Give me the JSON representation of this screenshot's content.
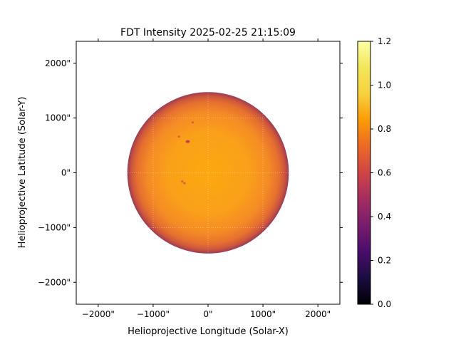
{
  "chart_data": {
    "type": "heatmap",
    "title": "FDT Intensity 2025-02-25 21:15:09",
    "xlabel": "Helioprojective Longitude (Solar-X)",
    "ylabel": "Helioprojective Latitude (Solar-Y)",
    "xlim": [
      -2400,
      2400
    ],
    "ylim": [
      -2400,
      2400
    ],
    "x_ticks": [
      -2000,
      -1000,
      0,
      1000,
      2000
    ],
    "y_ticks": [
      -2000,
      -1000,
      0,
      1000,
      2000
    ],
    "x_tick_labels": [
      "−2000\"",
      "−1000\"",
      "0\"",
      "1000\"",
      "2000\""
    ],
    "y_tick_labels": [
      "−2000\"",
      "−1000\"",
      "0\"",
      "1000\"",
      "2000\""
    ],
    "grid": true,
    "colormap": "inferno",
    "colorbar": {
      "min": 0.0,
      "max": 1.2,
      "ticks": [
        0.0,
        0.2,
        0.4,
        0.6,
        0.8,
        1.0,
        1.2
      ],
      "tick_labels": [
        "0.0",
        "0.2",
        "0.4",
        "0.6",
        "0.8",
        "1.0",
        "1.2"
      ]
    },
    "solar_disk": {
      "center_arcsec": [
        0,
        0
      ],
      "radius_arcsec": 1470,
      "center_intensity": 1.0,
      "limb_intensity": 0.55
    },
    "features": [
      {
        "name": "sunspot",
        "x": -370,
        "y": 570,
        "intensity": 0.6
      },
      {
        "name": "sunspot",
        "x": -530,
        "y": 660,
        "intensity": 0.7
      },
      {
        "name": "sunspot",
        "x": -470,
        "y": -160,
        "intensity": 0.75
      },
      {
        "name": "sunspot",
        "x": -430,
        "y": -190,
        "intensity": 0.75
      },
      {
        "name": "sunspot",
        "x": -280,
        "y": 920,
        "intensity": 0.8
      }
    ]
  }
}
